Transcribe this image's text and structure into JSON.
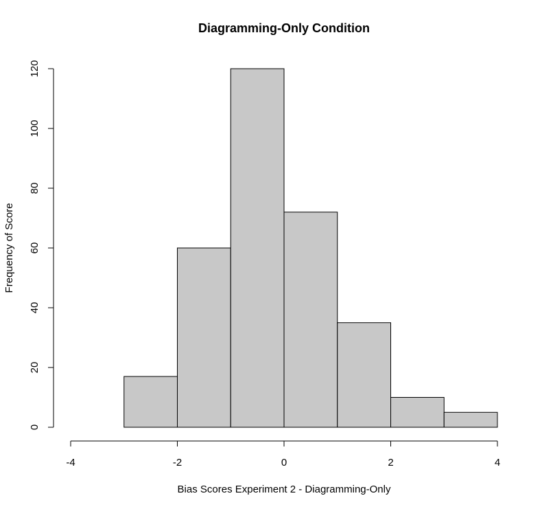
{
  "chart_data": {
    "type": "bar",
    "subtype": "histogram",
    "title": "Diagramming-Only Condition",
    "xlabel": "Bias Scores Experiment 2 - Diagramming-Only",
    "ylabel": "Frequency of Score",
    "bins": [
      {
        "from": -3,
        "to": -2,
        "count": 17
      },
      {
        "from": -2,
        "to": -1,
        "count": 60
      },
      {
        "from": -1,
        "to": 0,
        "count": 120
      },
      {
        "from": 0,
        "to": 1,
        "count": 72
      },
      {
        "from": 1,
        "to": 2,
        "count": 35
      },
      {
        "from": 2,
        "to": 3,
        "count": 10
      },
      {
        "from": 3,
        "to": 4,
        "count": 5
      }
    ],
    "xlim": [
      -4,
      4
    ],
    "ylim": [
      0,
      120
    ],
    "xticks": [
      "-4",
      "-2",
      "0",
      "2",
      "4"
    ],
    "yticks": [
      "0",
      "20",
      "40",
      "60",
      "80",
      "100",
      "120"
    ],
    "grid": false,
    "bar_color": "#c8c8c8",
    "edge_color": "#000000"
  }
}
